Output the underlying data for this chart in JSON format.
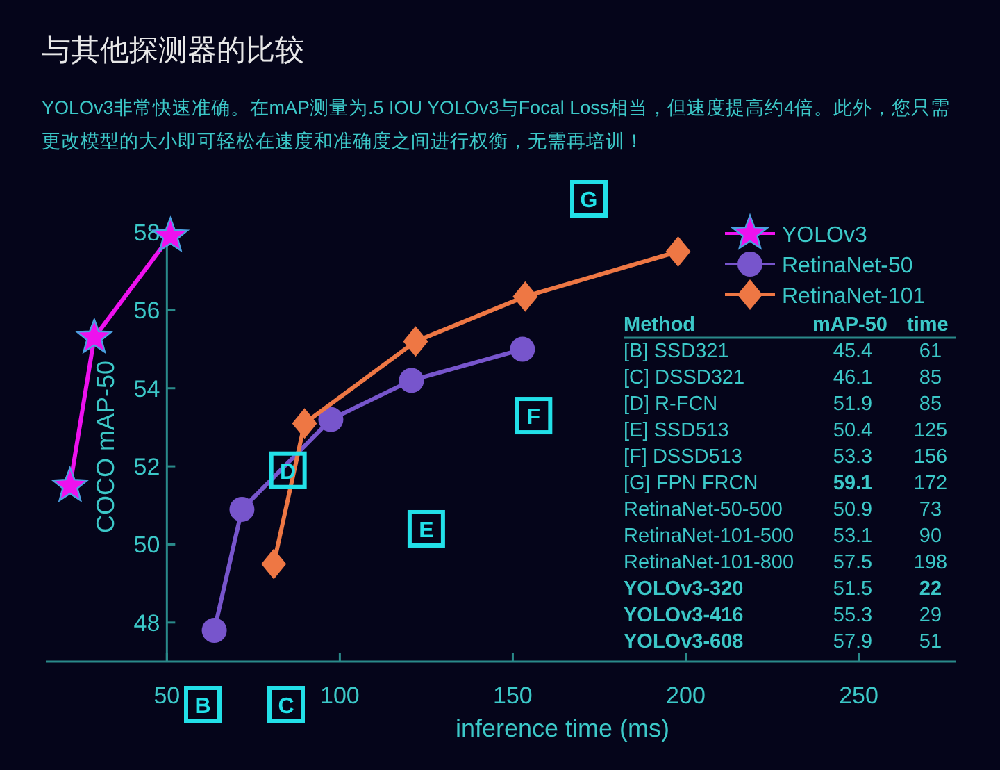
{
  "chart_data": {
    "type": "line",
    "title": "与其他探测器的比较",
    "subtitle": "YOLOv3非常快速准确。在mAP测量为.5 IOU YOLOv3与Focal Loss相当，但速度提高约4倍。此外，您只需更改模型的大小即可轻松在速度和准确度之间进行权衡，无需再培训！",
    "xlabel": "inference time (ms)",
    "ylabel": "COCO mAP-50",
    "xlim": [
      15,
      278
    ],
    "ylim": [
      47,
      58
    ],
    "xticks": [
      50,
      100,
      150,
      200,
      250
    ],
    "yticks": [
      48,
      50,
      52,
      54,
      56,
      58
    ],
    "grid": false,
    "legend": "top right",
    "series": [
      {
        "name": "YOLOv3",
        "color": "#ee11ee",
        "marker": "star",
        "x": [
          22,
          29,
          51
        ],
        "values": [
          51.5,
          55.3,
          57.9
        ]
      },
      {
        "name": "RetinaNet-50",
        "color": "#7755cc",
        "marker": "circle",
        "x": [
          63.7,
          71.7,
          97.4,
          120.7,
          152.8
        ],
        "values": [
          47.8,
          50.9,
          53.2,
          54.2,
          55.0
        ]
      },
      {
        "name": "RetinaNet-101",
        "color": "#ee7744",
        "marker": "diamond",
        "x": [
          80.9,
          89.8,
          121.9,
          153.6,
          197.8
        ],
        "values": [
          49.5,
          53.1,
          55.2,
          56.35,
          57.5
        ]
      }
    ],
    "annotations": [
      "B",
      "C",
      "G",
      {
        "text": "D",
        "x": 85,
        "y": 51.9
      },
      {
        "text": "E",
        "x": 125,
        "y": 50.4
      },
      {
        "text": "F",
        "x": 156,
        "y": 53.3
      },
      "Method",
      "mAP-50",
      "time",
      "[B] SSD321",
      "45.4",
      "61",
      "[C] DSSD321",
      "46.1",
      "85",
      "[D] R-FCN",
      "51.9",
      "85",
      "[E] SSD513",
      "50.4",
      "125",
      "[F] DSSD513",
      "53.3",
      "156",
      "[G] FPN FRCN",
      "59.1",
      "172",
      "RetinaNet-50-500",
      "50.9",
      "73",
      "RetinaNet-101-500",
      "53.1",
      "90",
      "RetinaNet-101-800",
      "57.5",
      "198",
      "YOLOv3-320",
      "51.5",
      "22",
      "YOLOv3-416",
      "55.3",
      "29",
      "YOLOv3-608",
      "57.9",
      "51"
    ]
  }
}
